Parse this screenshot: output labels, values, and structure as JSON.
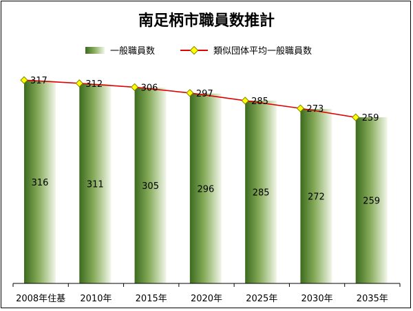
{
  "chart_data": {
    "type": "bar",
    "title": "南足柄市職員数推計",
    "categories": [
      "2008年住基",
      "2010年",
      "2015年",
      "2020年",
      "2025年",
      "2030年",
      "2035年"
    ],
    "series": [
      {
        "name": "一般職員数",
        "type": "bar",
        "values": [
          316,
          311,
          305,
          296,
          285,
          272,
          259
        ],
        "color": "#4f7f2a"
      },
      {
        "name": "類似団体平均一般職員数",
        "type": "line",
        "values": [
          317,
          312,
          306,
          297,
          285,
          273,
          259
        ],
        "color": "#e00000",
        "marker_color": "#ffff00"
      }
    ],
    "ylim": [
      0,
      330
    ],
    "grid": false,
    "legend_position": "top"
  }
}
